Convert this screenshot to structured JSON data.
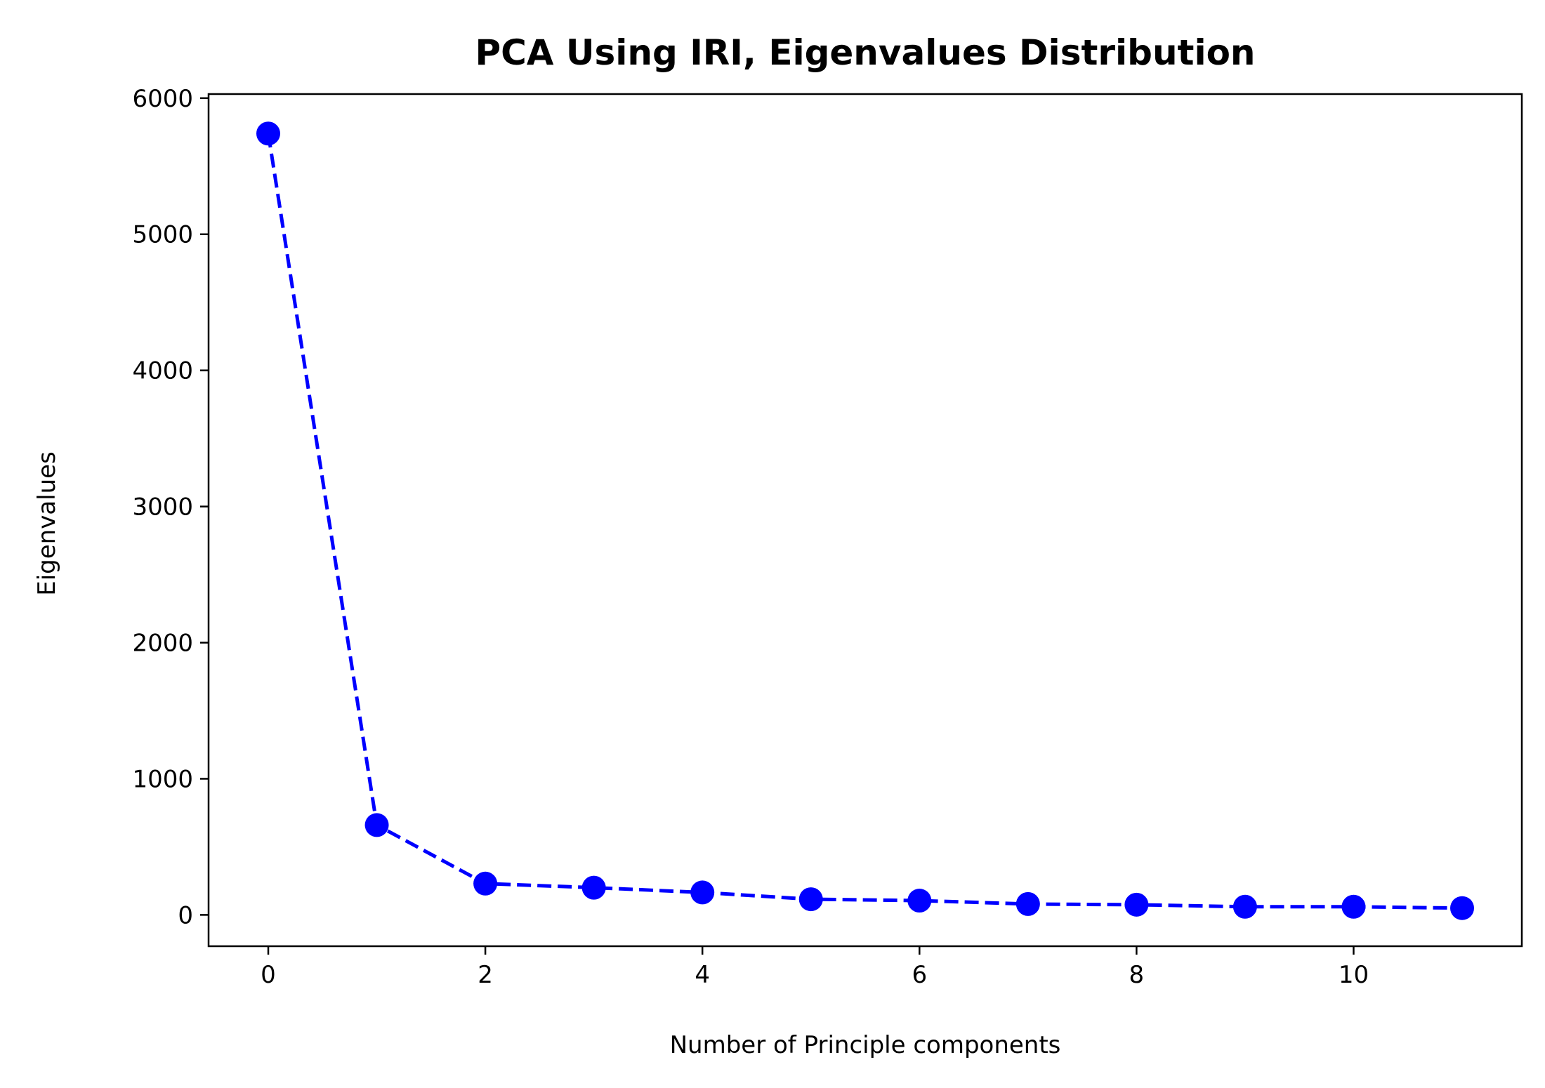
{
  "chart_data": {
    "type": "line",
    "title": "PCA Using IRI, Eigenvalues Distribution",
    "xlabel": "Number of Principle components",
    "ylabel": "Eigenvalues",
    "xlim": [
      -0.55,
      11.55
    ],
    "ylim": [
      -230,
      6030
    ],
    "x_ticks": [
      0,
      2,
      4,
      6,
      8,
      10
    ],
    "y_ticks": [
      0,
      1000,
      2000,
      3000,
      4000,
      5000,
      6000
    ],
    "grid": false,
    "legend": "none",
    "series": [
      {
        "x": [
          0,
          1,
          2,
          3,
          4,
          5,
          6,
          7,
          8,
          9,
          10,
          11
        ],
        "y": [
          5740,
          660,
          230,
          200,
          165,
          115,
          105,
          80,
          75,
          60,
          60,
          50
        ],
        "color": "#0000ff",
        "line_style": "dashed",
        "marker": "circle"
      }
    ]
  }
}
